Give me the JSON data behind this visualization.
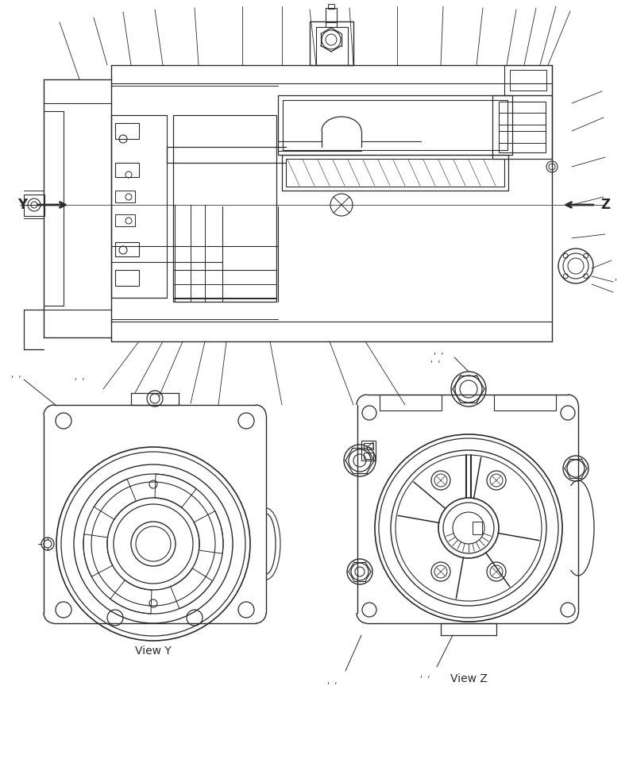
{
  "bg_color": "#ffffff",
  "line_color": "#2a2a2a",
  "figsize": [
    7.92,
    9.61
  ],
  "dpi": 100,
  "view_y_label": "View Y",
  "view_z_label": "View Z",
  "y_label": "Y",
  "z_label": "Z"
}
